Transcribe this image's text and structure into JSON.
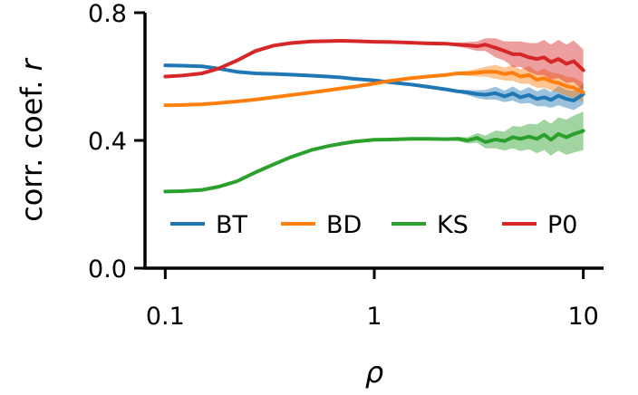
{
  "chart_data": {
    "type": "line",
    "xscale": "log",
    "xlim": [
      0.08,
      12.5
    ],
    "ylim": [
      0.0,
      0.8
    ],
    "xticks": [
      0.1,
      1,
      10
    ],
    "xtick_labels": [
      "0.1",
      "1",
      "10"
    ],
    "yticks": [
      0.0,
      0.4,
      0.8
    ],
    "ytick_labels": [
      "0.0",
      "0.4",
      "0.8"
    ],
    "xlabel": "ρ",
    "ylabel_main": "corr. coef. ",
    "ylabel_var": "r",
    "grid": false,
    "legend": {
      "placement": "lower-center",
      "columns": 4
    },
    "x": [
      0.1,
      0.12,
      0.15,
      0.18,
      0.22,
      0.27,
      0.33,
      0.4,
      0.5,
      0.6,
      0.7,
      0.8,
      1.0,
      1.2,
      1.5,
      1.8,
      2.2,
      2.5,
      2.8,
      3.1,
      3.4,
      3.8,
      4.2,
      4.6,
      5.0,
      5.5,
      6.0,
      6.5,
      7.0,
      7.6,
      8.3,
      9.0,
      10.0
    ],
    "series": [
      {
        "name": "BT",
        "color": "#1f77b4",
        "values": [
          0.635,
          0.634,
          0.632,
          0.625,
          0.615,
          0.61,
          0.608,
          0.606,
          0.603,
          0.6,
          0.597,
          0.593,
          0.588,
          0.582,
          0.575,
          0.568,
          0.56,
          0.554,
          0.55,
          0.545,
          0.543,
          0.548,
          0.538,
          0.547,
          0.535,
          0.542,
          0.53,
          0.535,
          0.527,
          0.54,
          0.53,
          0.525,
          0.545
        ],
        "band": [
          0.0,
          0.0,
          0.0,
          0.0,
          0.0,
          0.0,
          0.0,
          0.0,
          0.0,
          0.0,
          0.0,
          0.0,
          0.0,
          0.0,
          0.0,
          0.0,
          0.0,
          0.005,
          0.008,
          0.012,
          0.015,
          0.02,
          0.018,
          0.022,
          0.02,
          0.025,
          0.023,
          0.028,
          0.025,
          0.03,
          0.028,
          0.03,
          0.032
        ]
      },
      {
        "name": "BD",
        "color": "#ff7f0e",
        "values": [
          0.51,
          0.511,
          0.513,
          0.517,
          0.522,
          0.528,
          0.535,
          0.542,
          0.55,
          0.557,
          0.563,
          0.568,
          0.578,
          0.587,
          0.595,
          0.6,
          0.605,
          0.61,
          0.61,
          0.612,
          0.615,
          0.615,
          0.608,
          0.612,
          0.6,
          0.605,
          0.59,
          0.595,
          0.585,
          0.58,
          0.57,
          0.565,
          0.55
        ],
        "band": [
          0.0,
          0.0,
          0.0,
          0.0,
          0.0,
          0.0,
          0.0,
          0.0,
          0.0,
          0.0,
          0.0,
          0.0,
          0.0,
          0.0,
          0.0,
          0.0,
          0.0,
          0.005,
          0.008,
          0.012,
          0.015,
          0.022,
          0.02,
          0.025,
          0.022,
          0.028,
          0.025,
          0.03,
          0.028,
          0.03,
          0.03,
          0.032,
          0.03
        ]
      },
      {
        "name": "KS",
        "color": "#2ca02c",
        "values": [
          0.24,
          0.241,
          0.245,
          0.255,
          0.272,
          0.3,
          0.325,
          0.348,
          0.37,
          0.382,
          0.39,
          0.396,
          0.402,
          0.403,
          0.405,
          0.405,
          0.404,
          0.405,
          0.4,
          0.408,
          0.395,
          0.403,
          0.398,
          0.41,
          0.405,
          0.412,
          0.405,
          0.418,
          0.402,
          0.42,
          0.41,
          0.42,
          0.43
        ],
        "band": [
          0.0,
          0.0,
          0.0,
          0.0,
          0.0,
          0.0,
          0.0,
          0.0,
          0.0,
          0.0,
          0.0,
          0.0,
          0.0,
          0.0,
          0.0,
          0.0,
          0.0,
          0.006,
          0.01,
          0.015,
          0.02,
          0.028,
          0.03,
          0.035,
          0.038,
          0.04,
          0.045,
          0.048,
          0.05,
          0.052,
          0.055,
          0.058,
          0.06
        ]
      },
      {
        "name": "P0",
        "color": "#d62728",
        "values": [
          0.6,
          0.603,
          0.61,
          0.625,
          0.65,
          0.68,
          0.697,
          0.705,
          0.71,
          0.711,
          0.712,
          0.711,
          0.709,
          0.708,
          0.706,
          0.704,
          0.703,
          0.7,
          0.698,
          0.695,
          0.7,
          0.69,
          0.68,
          0.67,
          0.67,
          0.66,
          0.655,
          0.66,
          0.645,
          0.655,
          0.64,
          0.648,
          0.62
        ],
        "band": [
          0.0,
          0.0,
          0.0,
          0.0,
          0.0,
          0.0,
          0.0,
          0.0,
          0.0,
          0.0,
          0.0,
          0.0,
          0.0,
          0.0,
          0.0,
          0.0,
          0.0,
          0.006,
          0.01,
          0.015,
          0.02,
          0.03,
          0.03,
          0.04,
          0.04,
          0.045,
          0.05,
          0.055,
          0.055,
          0.06,
          0.06,
          0.065,
          0.065
        ]
      }
    ]
  }
}
